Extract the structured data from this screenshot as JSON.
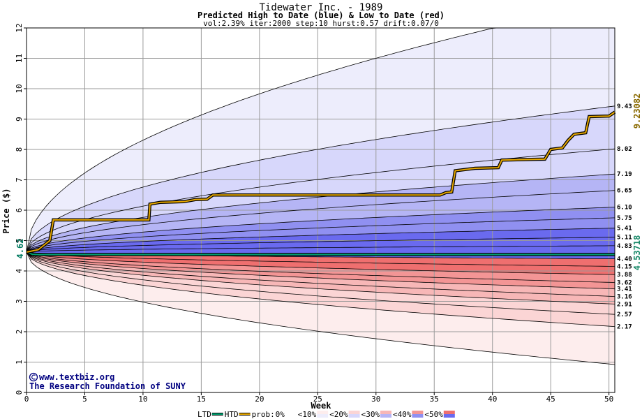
{
  "chart_data": {
    "type": "area",
    "title": "Tidewater Inc. - 1989",
    "subtitle": "Predicted High to Date (blue) &  Low to Date (red)",
    "params": "vol:2.39% iter:2000 step:10 hurst:0.57 drift:0.07/0",
    "xlabel": "Week",
    "ylabel": "Price ($)",
    "xlim": [
      0,
      50.5
    ],
    "ylim": [
      0,
      12
    ],
    "x_ticks": [
      "0",
      "5",
      "10",
      "15",
      "20",
      "25",
      "30",
      "35",
      "40",
      "45",
      "50"
    ],
    "y_ticks": [
      "0",
      "1",
      "2",
      "3",
      "4",
      "5",
      "6",
      "7",
      "8",
      "9",
      "10",
      "11",
      "12"
    ],
    "grid": true,
    "start_price": 4.62,
    "start_label": "4.62",
    "high_band_labels": [
      "9.43",
      "8.02",
      "7.19",
      "6.65",
      "6.10",
      "5.75",
      "5.41",
      "5.11",
      "4.83"
    ],
    "high_band_values": [
      9.43,
      8.02,
      7.19,
      6.65,
      6.1,
      5.75,
      5.41,
      5.11,
      4.83
    ],
    "low_band_labels": [
      "4.40",
      "4.15",
      "3.88",
      "3.62",
      "3.41",
      "3.16",
      "2.91",
      "2.57",
      "2.17"
    ],
    "low_band_values": [
      4.4,
      4.15,
      3.88,
      3.62,
      3.41,
      3.16,
      2.91,
      2.57,
      2.17
    ],
    "outer_high_end": 12.9,
    "outer_low_end": 0.92,
    "htd_label": "9.23082",
    "ltd_label": "4.53718",
    "htd_series": {
      "name": "HTD",
      "points": [
        [
          0,
          4.62
        ],
        [
          1,
          4.7
        ],
        [
          2,
          5.0
        ],
        [
          2.3,
          5.68
        ],
        [
          10.5,
          5.68
        ],
        [
          10.6,
          6.2
        ],
        [
          11.5,
          6.26
        ],
        [
          13.5,
          6.28
        ],
        [
          14.5,
          6.35
        ],
        [
          15.5,
          6.36
        ],
        [
          16,
          6.5
        ],
        [
          35.5,
          6.5
        ],
        [
          36,
          6.58
        ],
        [
          36.5,
          6.6
        ],
        [
          36.8,
          7.3
        ],
        [
          38.5,
          7.38
        ],
        [
          40.5,
          7.4
        ],
        [
          40.8,
          7.65
        ],
        [
          44.5,
          7.68
        ],
        [
          45,
          8.0
        ],
        [
          46,
          8.05
        ],
        [
          46.5,
          8.3
        ],
        [
          47,
          8.5
        ],
        [
          48,
          8.55
        ],
        [
          48.3,
          9.08
        ],
        [
          50,
          9.1
        ],
        [
          50.5,
          9.23
        ]
      ]
    },
    "ltd_series": {
      "name": "LTD",
      "points": [
        [
          0,
          4.62
        ],
        [
          0.5,
          4.55
        ],
        [
          1,
          4.54
        ],
        [
          50.5,
          4.54
        ]
      ]
    },
    "legend": {
      "ltd": "LTD",
      "htd": "HTD",
      "prob_prefix": "prob:",
      "items": [
        "0%",
        "<10%",
        "<20%",
        "<30%",
        "<40%",
        "<50%"
      ],
      "colors": {
        "blue": [
          "#ffffff",
          "#ededfc",
          "#d7d7fb",
          "#b5b5f5",
          "#9090f1",
          "#6a6aef"
        ],
        "red": [
          "#ffffff",
          "#fdeded",
          "#fbd5d5",
          "#f7b7b7",
          "#f39595",
          "#ef6f6f"
        ]
      }
    }
  },
  "credits": {
    "site": "www.textbiz.org",
    "org": "The Research Foundation of SUNY"
  },
  "colors": {
    "grid": "#9a9a9a",
    "htd": "#e8a800",
    "ltd": "#00a070",
    "start_label": "#007a60",
    "htd_label": "#8a6a00",
    "ltd_label": "#1a8a6a"
  }
}
